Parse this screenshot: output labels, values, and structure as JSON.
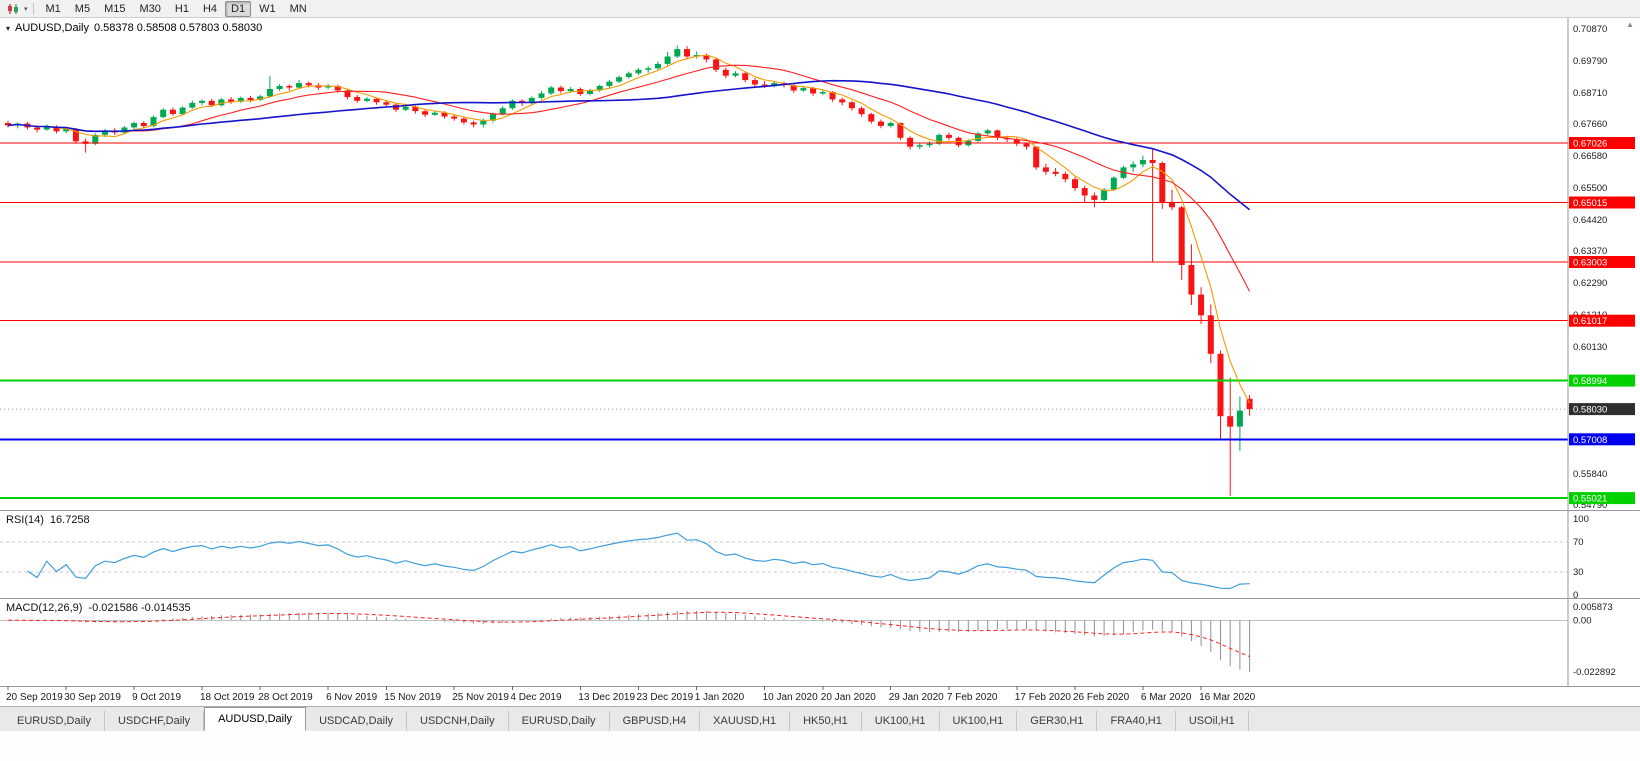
{
  "toolbar": {
    "timeframes": [
      {
        "label": "M1"
      },
      {
        "label": "M5"
      },
      {
        "label": "M15"
      },
      {
        "label": "M30"
      },
      {
        "label": "H1"
      },
      {
        "label": "H4"
      },
      {
        "label": "D1"
      },
      {
        "label": "W1"
      },
      {
        "label": "MN"
      }
    ],
    "active_timeframe": "D1"
  },
  "chart": {
    "title_symbol": "AUDUSD,Daily",
    "title_ohlc": "0.58378 0.58508 0.57803 0.58030"
  },
  "chart_data": {
    "type": "candlestick",
    "symbol": "AUDUSD",
    "timeframe": "Daily",
    "ohlc_current": {
      "open": 0.58378,
      "high": 0.58508,
      "low": 0.57803,
      "close": 0.5803
    },
    "up_color": "#00A850",
    "down_color": "#F81414",
    "price_axis_labels": [
      "0.70870",
      "0.69790",
      "0.68710",
      "0.67660",
      "0.66580",
      "0.65500",
      "0.64420",
      "0.63370",
      "0.62290",
      "0.61210",
      "0.60130",
      "0.55840",
      "0.54790"
    ],
    "hlines": [
      {
        "price": 0.67026,
        "label": "0.67026",
        "color": "#FF0000",
        "width": 1
      },
      {
        "price": 0.65015,
        "label": "0.65015",
        "color": "#FF0000",
        "width": 1
      },
      {
        "price": 0.63003,
        "label": "0.63003",
        "color": "#FF0000",
        "width": 1
      },
      {
        "price": 0.61017,
        "label": "0.61017",
        "color": "#FF0000",
        "width": 1
      },
      {
        "price": 0.58994,
        "label": "0.58994",
        "color": "#00D200",
        "width": 2
      },
      {
        "price": 0.57008,
        "label": "0.57008",
        "color": "#0000F0",
        "width": 2
      },
      {
        "price": 0.55021,
        "label": "0.55021",
        "color": "#00D200",
        "width": 2
      }
    ],
    "current_price_marker": {
      "price": 0.5803,
      "label": "0.58030",
      "bg": "#2f2f2f"
    },
    "moving_averages": [
      {
        "period": 5,
        "type": "sma",
        "color": "#F59B00",
        "stroke": 1.1
      },
      {
        "period": 13,
        "type": "sma",
        "color": "#FF2020",
        "stroke": 1.1
      },
      {
        "period": 34,
        "type": "sma",
        "color": "#1414CC",
        "stroke": 1.6
      }
    ],
    "candles": [
      [
        0.677,
        0.6778,
        0.6755,
        0.6762
      ],
      [
        0.6762,
        0.6772,
        0.6752,
        0.6768
      ],
      [
        0.6768,
        0.6773,
        0.6748,
        0.6755
      ],
      [
        0.6755,
        0.6762,
        0.6738,
        0.6748
      ],
      [
        0.6748,
        0.6765,
        0.6744,
        0.6758
      ],
      [
        0.6758,
        0.6762,
        0.6735,
        0.6742
      ],
      [
        0.6742,
        0.6756,
        0.6736,
        0.675
      ],
      [
        0.675,
        0.6753,
        0.67,
        0.6708
      ],
      [
        0.6708,
        0.6718,
        0.667,
        0.67
      ],
      [
        0.67,
        0.6735,
        0.6695,
        0.673
      ],
      [
        0.673,
        0.675,
        0.6722,
        0.6745
      ],
      [
        0.6745,
        0.6752,
        0.673,
        0.6738
      ],
      [
        0.6738,
        0.676,
        0.6733,
        0.6755
      ],
      [
        0.6755,
        0.6775,
        0.675,
        0.677
      ],
      [
        0.677,
        0.6776,
        0.6752,
        0.676
      ],
      [
        0.676,
        0.6795,
        0.6756,
        0.679
      ],
      [
        0.679,
        0.682,
        0.6786,
        0.6815
      ],
      [
        0.6815,
        0.6822,
        0.6795,
        0.68
      ],
      [
        0.68,
        0.6827,
        0.6796,
        0.6822
      ],
      [
        0.6822,
        0.6845,
        0.6818,
        0.6838
      ],
      [
        0.6838,
        0.685,
        0.683,
        0.6845
      ],
      [
        0.6845,
        0.6852,
        0.6824,
        0.683
      ],
      [
        0.683,
        0.6855,
        0.6826,
        0.685
      ],
      [
        0.685,
        0.6858,
        0.6835,
        0.6842
      ],
      [
        0.6842,
        0.686,
        0.6838,
        0.6855
      ],
      [
        0.6855,
        0.6862,
        0.684,
        0.6848
      ],
      [
        0.6848,
        0.6865,
        0.6844,
        0.686
      ],
      [
        0.686,
        0.693,
        0.6855,
        0.6885
      ],
      [
        0.6885,
        0.6902,
        0.6878,
        0.6895
      ],
      [
        0.6895,
        0.69,
        0.688,
        0.689
      ],
      [
        0.689,
        0.6915,
        0.6885,
        0.6905
      ],
      [
        0.6905,
        0.691,
        0.689,
        0.6898
      ],
      [
        0.6898,
        0.6905,
        0.6882,
        0.689
      ],
      [
        0.689,
        0.6902,
        0.6884,
        0.6895
      ],
      [
        0.6895,
        0.69,
        0.6872,
        0.688
      ],
      [
        0.688,
        0.6885,
        0.685,
        0.6858
      ],
      [
        0.6858,
        0.6865,
        0.6838,
        0.6845
      ],
      [
        0.6845,
        0.6858,
        0.684,
        0.6852
      ],
      [
        0.6852,
        0.6856,
        0.6832,
        0.684
      ],
      [
        0.684,
        0.6848,
        0.6826,
        0.6832
      ],
      [
        0.6832,
        0.6838,
        0.6808,
        0.6815
      ],
      [
        0.6815,
        0.683,
        0.681,
        0.6825
      ],
      [
        0.6825,
        0.683,
        0.6802,
        0.681
      ],
      [
        0.681,
        0.6815,
        0.679,
        0.6798
      ],
      [
        0.6798,
        0.6812,
        0.6794,
        0.6805
      ],
      [
        0.6805,
        0.681,
        0.6785,
        0.6792
      ],
      [
        0.6792,
        0.68,
        0.6778,
        0.6785
      ],
      [
        0.6785,
        0.679,
        0.6765,
        0.6772
      ],
      [
        0.6772,
        0.6778,
        0.6755,
        0.6765
      ],
      [
        0.6765,
        0.6785,
        0.6755,
        0.6778
      ],
      [
        0.6778,
        0.6805,
        0.6772,
        0.68
      ],
      [
        0.68,
        0.6828,
        0.6795,
        0.682
      ],
      [
        0.682,
        0.685,
        0.6815,
        0.6845
      ],
      [
        0.6845,
        0.685,
        0.6828,
        0.6838
      ],
      [
        0.6838,
        0.686,
        0.6832,
        0.6855
      ],
      [
        0.6855,
        0.6878,
        0.685,
        0.687
      ],
      [
        0.687,
        0.6895,
        0.6865,
        0.689
      ],
      [
        0.689,
        0.6896,
        0.687,
        0.6878
      ],
      [
        0.6878,
        0.6892,
        0.6872,
        0.6885
      ],
      [
        0.6885,
        0.689,
        0.6862,
        0.6868
      ],
      [
        0.6868,
        0.6885,
        0.6864,
        0.688
      ],
      [
        0.688,
        0.69,
        0.6875,
        0.6895
      ],
      [
        0.6895,
        0.6916,
        0.689,
        0.691
      ],
      [
        0.691,
        0.693,
        0.6905,
        0.6925
      ],
      [
        0.6925,
        0.6944,
        0.692,
        0.6938
      ],
      [
        0.6938,
        0.6956,
        0.6932,
        0.695
      ],
      [
        0.695,
        0.6962,
        0.694,
        0.6955
      ],
      [
        0.6955,
        0.6978,
        0.695,
        0.697
      ],
      [
        0.697,
        0.701,
        0.6965,
        0.6995
      ],
      [
        0.6995,
        0.7032,
        0.699,
        0.702
      ],
      [
        0.702,
        0.703,
        0.6985,
        0.6995
      ],
      [
        0.6995,
        0.7012,
        0.6988,
        0.7
      ],
      [
        0.7,
        0.7005,
        0.6975,
        0.6985
      ],
      [
        0.6985,
        0.699,
        0.6942,
        0.695
      ],
      [
        0.695,
        0.6958,
        0.6922,
        0.693
      ],
      [
        0.693,
        0.6945,
        0.6925,
        0.6938
      ],
      [
        0.6938,
        0.6942,
        0.6908,
        0.6915
      ],
      [
        0.6915,
        0.6922,
        0.6892,
        0.69
      ],
      [
        0.69,
        0.6912,
        0.6888,
        0.6895
      ],
      [
        0.6895,
        0.6912,
        0.689,
        0.6905
      ],
      [
        0.6905,
        0.691,
        0.689,
        0.6898
      ],
      [
        0.6898,
        0.6902,
        0.6872,
        0.688
      ],
      [
        0.688,
        0.6895,
        0.6875,
        0.6888
      ],
      [
        0.6888,
        0.6892,
        0.6862,
        0.687
      ],
      [
        0.687,
        0.6882,
        0.6865,
        0.6875
      ],
      [
        0.6875,
        0.6878,
        0.6842,
        0.685
      ],
      [
        0.685,
        0.6856,
        0.683,
        0.684
      ],
      [
        0.684,
        0.6845,
        0.6812,
        0.682
      ],
      [
        0.682,
        0.6826,
        0.6792,
        0.68
      ],
      [
        0.68,
        0.6805,
        0.6768,
        0.6775
      ],
      [
        0.6775,
        0.6782,
        0.6752,
        0.676
      ],
      [
        0.676,
        0.6775,
        0.6755,
        0.677
      ],
      [
        0.677,
        0.6772,
        0.6712,
        0.672
      ],
      [
        0.672,
        0.6725,
        0.668,
        0.669
      ],
      [
        0.669,
        0.6702,
        0.6682,
        0.6695
      ],
      [
        0.6695,
        0.6708,
        0.6688,
        0.67
      ],
      [
        0.67,
        0.6735,
        0.6695,
        0.673
      ],
      [
        0.673,
        0.6738,
        0.6712,
        0.672
      ],
      [
        0.672,
        0.6724,
        0.6688,
        0.6695
      ],
      [
        0.6695,
        0.6715,
        0.669,
        0.671
      ],
      [
        0.671,
        0.674,
        0.6705,
        0.6735
      ],
      [
        0.6735,
        0.675,
        0.6728,
        0.6745
      ],
      [
        0.6745,
        0.6748,
        0.6712,
        0.672
      ],
      [
        0.672,
        0.6726,
        0.6706,
        0.6715
      ],
      [
        0.6715,
        0.672,
        0.6692,
        0.67
      ],
      [
        0.67,
        0.6705,
        0.668,
        0.669
      ],
      [
        0.669,
        0.6692,
        0.6612,
        0.662
      ],
      [
        0.662,
        0.6632,
        0.6595,
        0.6605
      ],
      [
        0.6605,
        0.6618,
        0.659,
        0.6598
      ],
      [
        0.6598,
        0.6605,
        0.657,
        0.658
      ],
      [
        0.658,
        0.6588,
        0.654,
        0.655
      ],
      [
        0.655,
        0.6558,
        0.65,
        0.6525
      ],
      [
        0.6525,
        0.6535,
        0.6485,
        0.651
      ],
      [
        0.651,
        0.655,
        0.6505,
        0.6545
      ],
      [
        0.6545,
        0.659,
        0.654,
        0.6585
      ],
      [
        0.6585,
        0.6625,
        0.658,
        0.662
      ],
      [
        0.662,
        0.664,
        0.6605,
        0.663
      ],
      [
        0.663,
        0.666,
        0.662,
        0.6645
      ],
      [
        0.6645,
        0.6685,
        0.63,
        0.6635
      ],
      [
        0.6635,
        0.664,
        0.648,
        0.65
      ],
      [
        0.65,
        0.6545,
        0.6475,
        0.6485
      ],
      [
        0.6485,
        0.649,
        0.624,
        0.629
      ],
      [
        0.629,
        0.636,
        0.6155,
        0.619
      ],
      [
        0.619,
        0.6215,
        0.609,
        0.612
      ],
      [
        0.612,
        0.6157,
        0.5958,
        0.599
      ],
      [
        0.599,
        0.6001,
        0.5702,
        0.5779
      ],
      [
        0.5779,
        0.5909,
        0.551,
        0.5744
      ],
      [
        0.5744,
        0.5846,
        0.5662,
        0.5798
      ],
      [
        0.58378,
        0.58508,
        0.57803,
        0.5803
      ]
    ],
    "date_ticks": [
      {
        "i": 0,
        "label": "20 Sep 2019"
      },
      {
        "i": 6,
        "label": "30 Sep 2019"
      },
      {
        "i": 13,
        "label": "9 Oct 2019"
      },
      {
        "i": 20,
        "label": "18 Oct 2019"
      },
      {
        "i": 26,
        "label": "28 Oct 2019"
      },
      {
        "i": 33,
        "label": "6 Nov 2019"
      },
      {
        "i": 39,
        "label": "15 Nov 2019"
      },
      {
        "i": 46,
        "label": "25 Nov 2019"
      },
      {
        "i": 52,
        "label": "4 Dec 2019"
      },
      {
        "i": 59,
        "label": "13 Dec 2019"
      },
      {
        "i": 65,
        "label": "23 Dec 2019"
      },
      {
        "i": 71,
        "label": "1 Jan 2020"
      },
      {
        "i": 78,
        "label": "10 Jan 2020"
      },
      {
        "i": 84,
        "label": "20 Jan 2020"
      },
      {
        "i": 91,
        "label": "29 Jan 2020"
      },
      {
        "i": 97,
        "label": "7 Feb 2020"
      },
      {
        "i": 104,
        "label": "17 Feb 2020"
      },
      {
        "i": 110,
        "label": "26 Feb 2020"
      },
      {
        "i": 117,
        "label": "6 Mar 2020"
      },
      {
        "i": 123,
        "label": "16 Mar 2020"
      }
    ],
    "rsi": {
      "name": "RSI(14)",
      "value_text": "16.7258",
      "period": 14,
      "levels": [
        "100",
        "70",
        "30",
        "0"
      ],
      "dashed_levels": [
        70,
        30
      ],
      "color": "#3E9EDD"
    },
    "macd": {
      "name": "MACD(12,26,9)",
      "value_text": "-0.021586 -0.014535",
      "fast": 12,
      "slow": 26,
      "signal_period": 9,
      "axis_labels": [
        {
          "v": 0.005873,
          "label": "0.005873"
        },
        {
          "v": 0,
          "label": "0.00"
        },
        {
          "v": -0.022892,
          "label": "-0.022892"
        }
      ],
      "hist_color": "#8f8f8f",
      "signal_color": "#FF2020"
    }
  },
  "tabs": [
    {
      "label": "EURUSD,Daily",
      "active": false
    },
    {
      "label": "USDCHF,Daily",
      "active": false
    },
    {
      "label": "AUDUSD,Daily",
      "active": true
    },
    {
      "label": "USDCAD,Daily",
      "active": false
    },
    {
      "label": "USDCNH,Daily",
      "active": false
    },
    {
      "label": "EURUSD,Daily",
      "active": false
    },
    {
      "label": "GBPUSD,H4",
      "active": false
    },
    {
      "label": "XAUUSD,H1",
      "active": false
    },
    {
      "label": "HK50,H1",
      "active": false
    },
    {
      "label": "UK100,H1",
      "active": false
    },
    {
      "label": "UK100,H1",
      "active": false
    },
    {
      "label": "GER30,H1",
      "active": false
    },
    {
      "label": "FRA40,H1",
      "active": false
    },
    {
      "label": "USOil,H1",
      "active": false
    }
  ]
}
